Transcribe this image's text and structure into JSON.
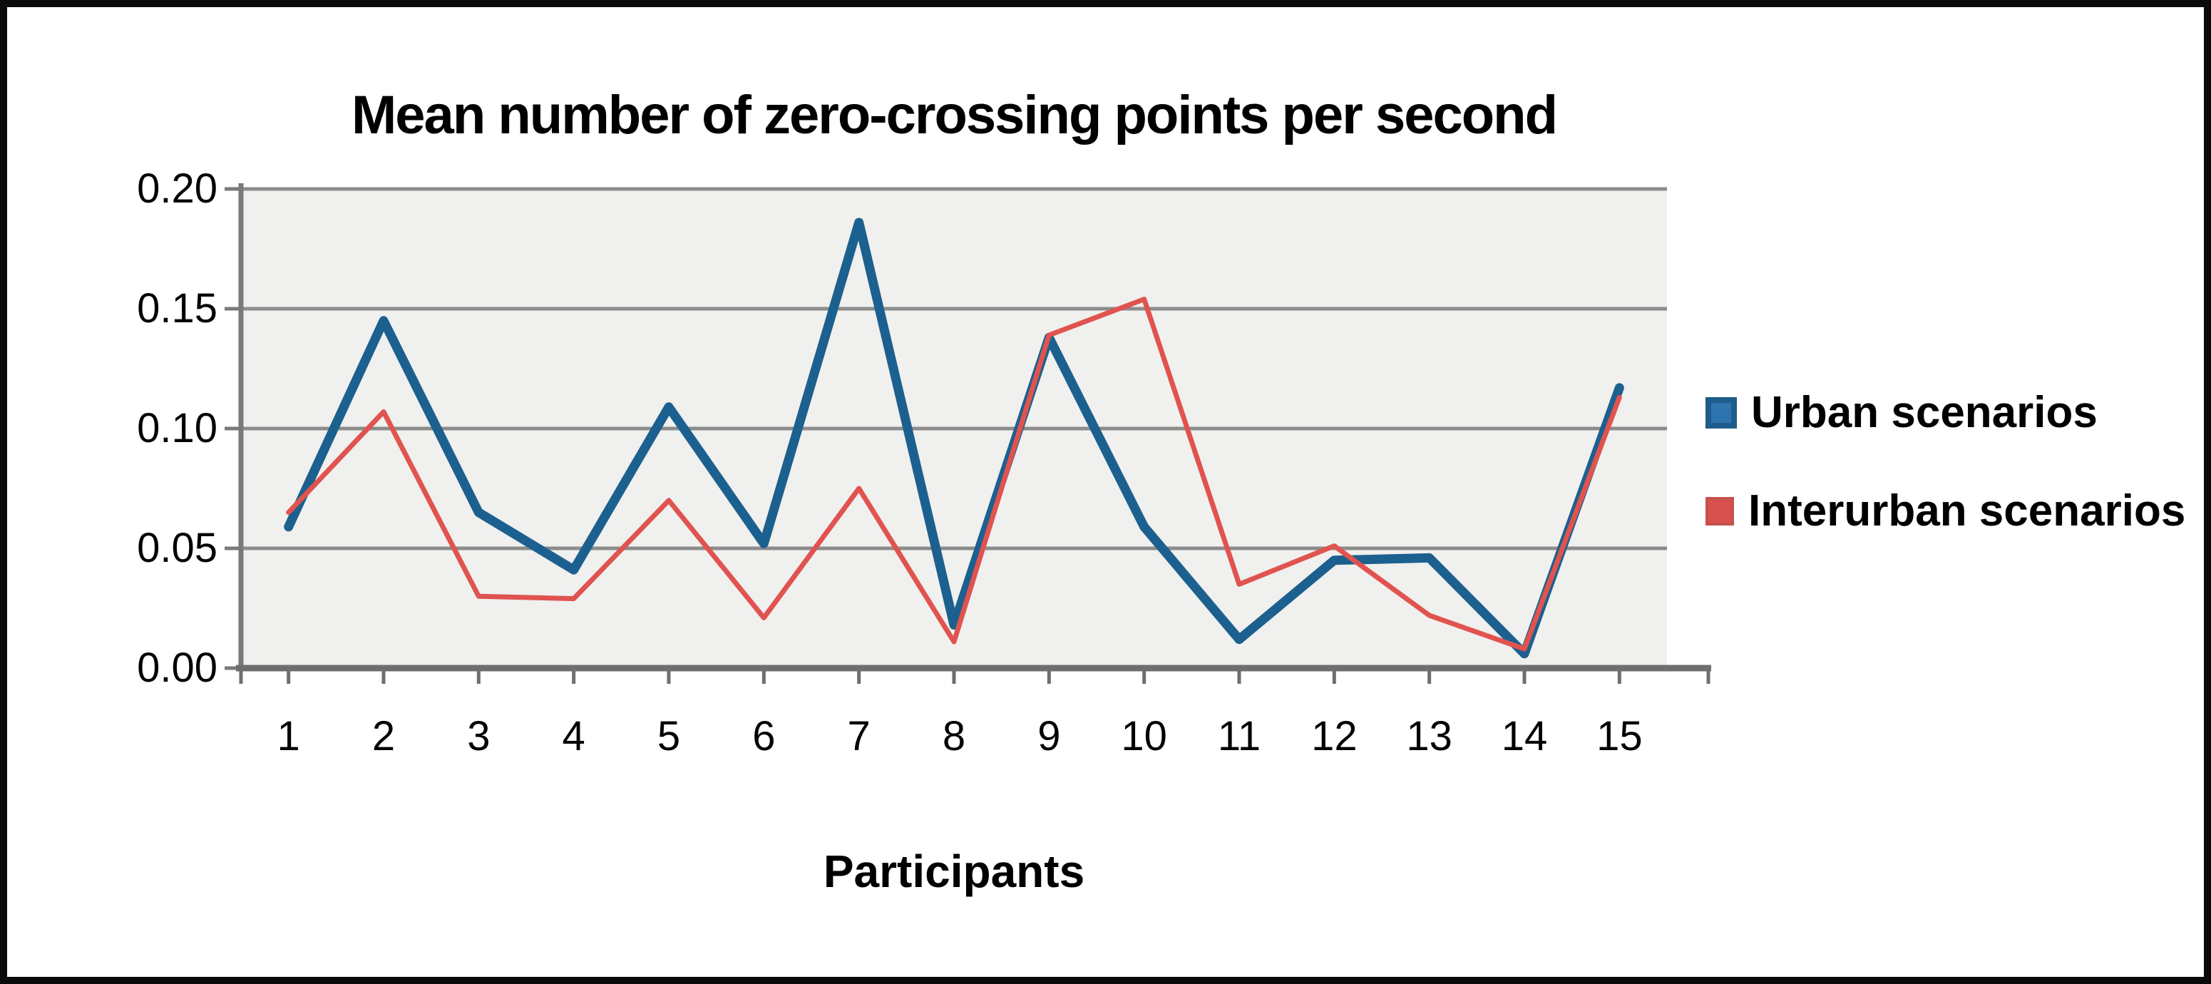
{
  "figure": {
    "border_color": "#0a0a0a",
    "background": "#ffffff"
  },
  "chart_data": {
    "type": "line",
    "title": "Mean number of zero-crossing points per second",
    "xlabel": "Participants",
    "ylabel": "",
    "categories": [
      1,
      2,
      3,
      4,
      5,
      6,
      7,
      8,
      9,
      10,
      11,
      12,
      13,
      14,
      15
    ],
    "series": [
      {
        "name": "Urban scenarios",
        "color": "#1C608F",
        "line_width": 13,
        "values": [
          0.059,
          0.145,
          0.065,
          0.041,
          0.109,
          0.052,
          0.186,
          0.018,
          0.138,
          0.059,
          0.012,
          0.045,
          0.046,
          0.006,
          0.117
        ]
      },
      {
        "name": "Interurban scenarios",
        "color": "#E0534F",
        "line_width": 7,
        "values": [
          0.065,
          0.107,
          0.03,
          0.029,
          0.07,
          0.021,
          0.075,
          0.011,
          0.139,
          0.154,
          0.035,
          0.051,
          0.022,
          0.008,
          0.113
        ]
      }
    ],
    "ylim": [
      0,
      0.2
    ],
    "yticks": [
      "0.00",
      "0.05",
      "0.10",
      "0.15",
      "0.20"
    ],
    "grid": "horizontal",
    "legend_position": "right",
    "plot_background": "#F0F0EE",
    "gridline_color": "#8C8C8C",
    "axis_color": "#6E6E6E"
  },
  "legend": {
    "items": [
      {
        "label": "Urban scenarios",
        "swatch_fill": "#2E74AE",
        "swatch_border": "#1E5C8A"
      },
      {
        "label": "Interurban scenarios",
        "swatch_fill": "#D8504D",
        "swatch_border": "#C4514B"
      }
    ]
  }
}
